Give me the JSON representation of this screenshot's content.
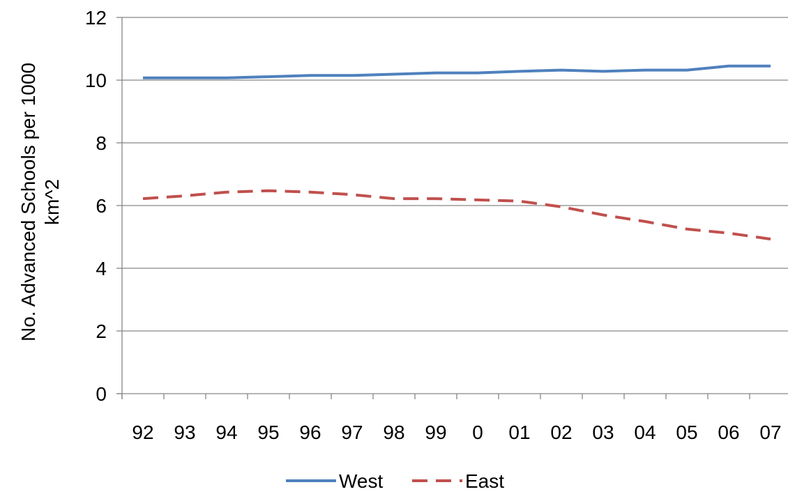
{
  "chart_data": {
    "type": "line",
    "title": "",
    "xlabel": "",
    "ylabel": "No. Advanced Schools per 1000 km^2",
    "ylabel_lines": [
      "No. Advanced Schools per 1000",
      "km^2"
    ],
    "categories": [
      "92",
      "93",
      "94",
      "95",
      "96",
      "97",
      "98",
      "99",
      "0",
      "01",
      "02",
      "03",
      "04",
      "05",
      "06",
      "07"
    ],
    "ylim": [
      0,
      12
    ],
    "yticks": [
      "0",
      "2",
      "4",
      "6",
      "8",
      "10",
      "12"
    ],
    "grid": true,
    "legend": "bottom",
    "series": [
      {
        "name": "West",
        "color": "#4F81BD",
        "style": "solid",
        "values": [
          10.07,
          10.07,
          10.07,
          10.11,
          10.15,
          10.15,
          10.19,
          10.23,
          10.23,
          10.28,
          10.32,
          10.28,
          10.32,
          10.32,
          10.45,
          10.45
        ]
      },
      {
        "name": "East",
        "color": "#C0504D",
        "style": "dashed",
        "values": [
          6.22,
          6.31,
          6.43,
          6.47,
          6.43,
          6.35,
          6.22,
          6.22,
          6.18,
          6.14,
          5.96,
          5.7,
          5.49,
          5.25,
          5.12,
          4.93
        ]
      }
    ]
  }
}
